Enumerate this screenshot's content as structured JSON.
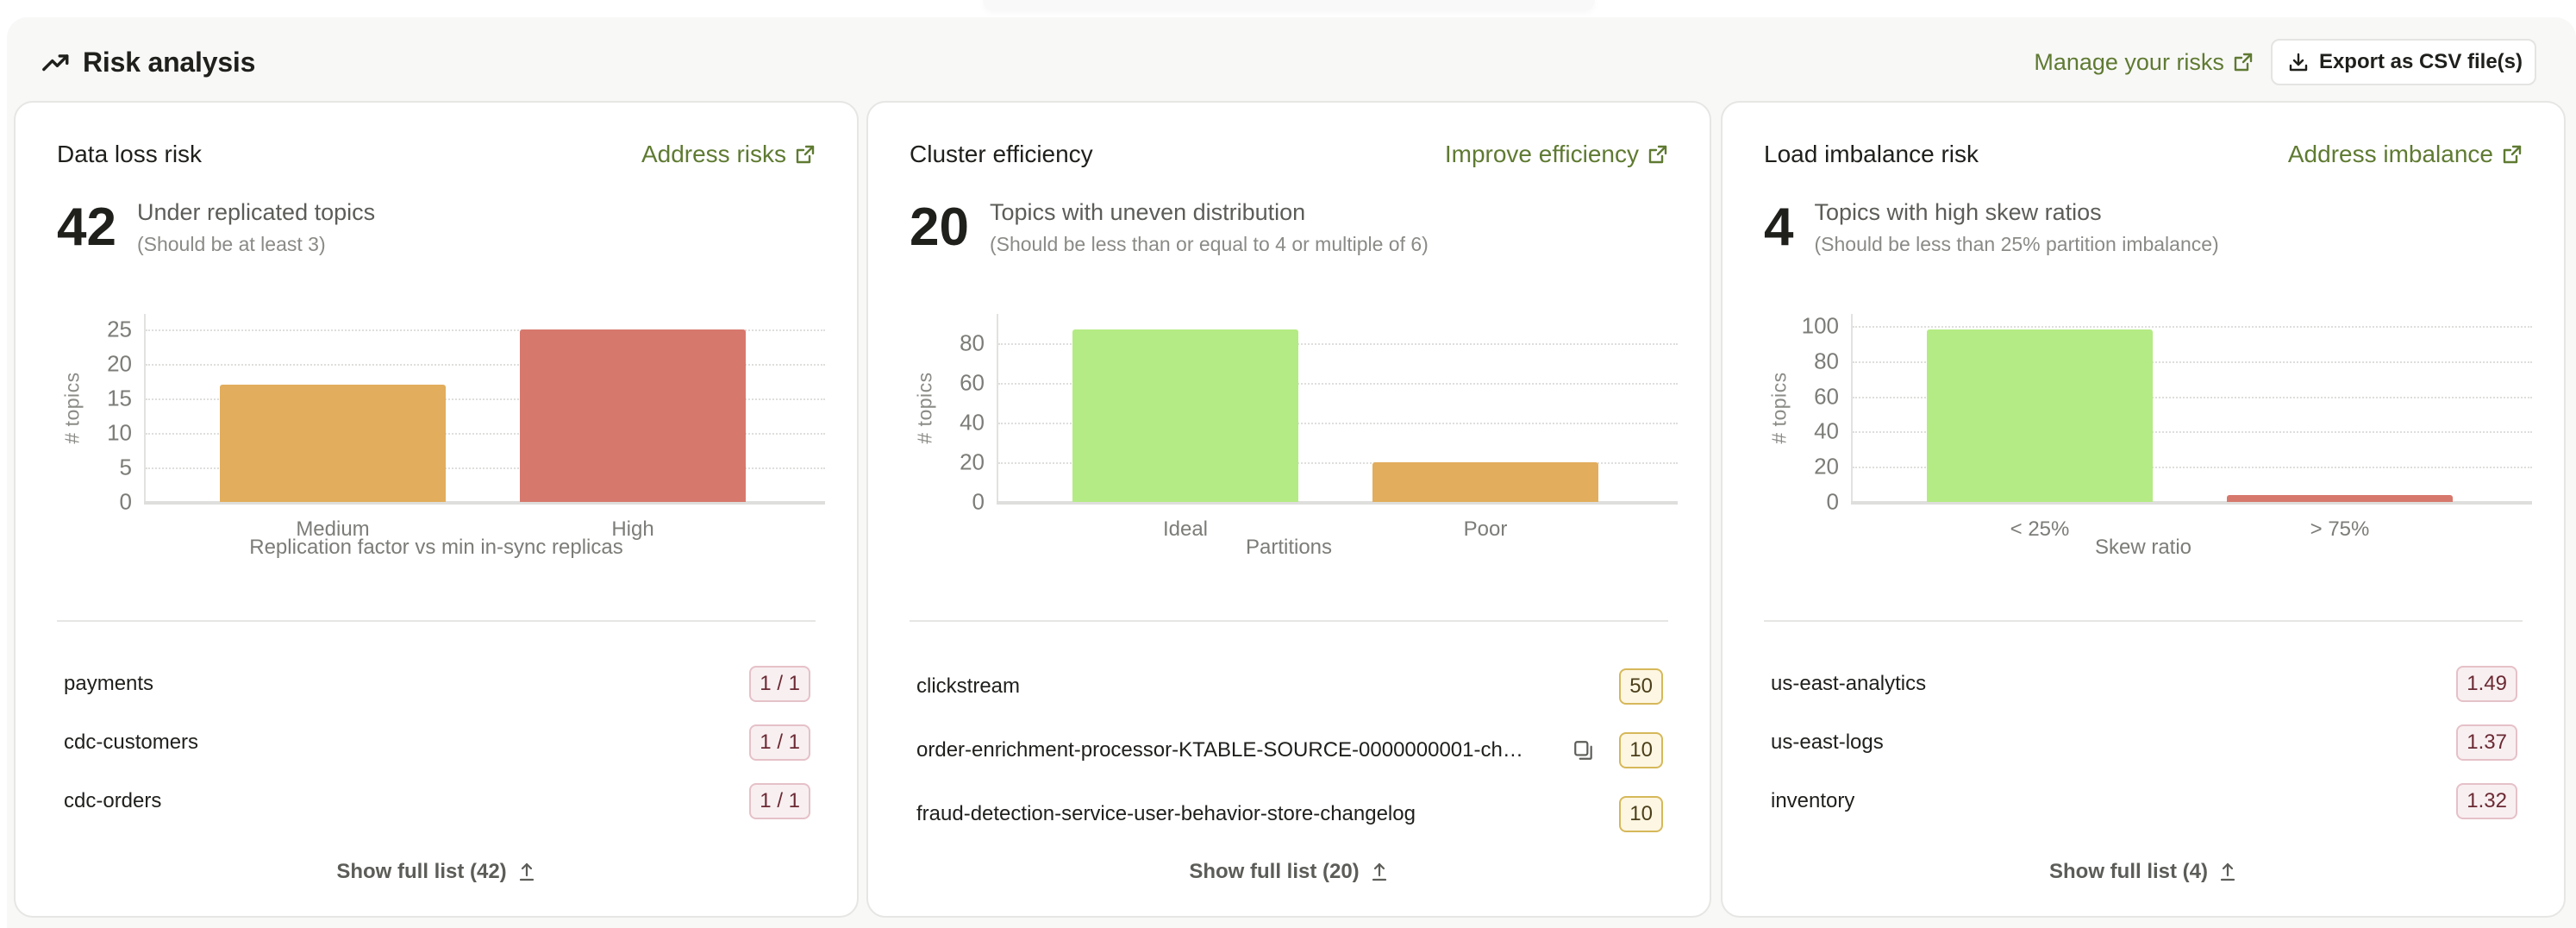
{
  "header": {
    "title": "Risk analysis",
    "icon": "trending-up-icon",
    "manage_link": "Manage your risks",
    "export_button": "Export as CSV file(s)"
  },
  "colors": {
    "accent_link": "#5f7a32",
    "bar_orange": "#e2ad5c",
    "bar_red": "#d7786d",
    "bar_green": "#b4eb84",
    "badge_red_bg": "#f8eff1",
    "badge_yellow_bg": "#fdf6e2",
    "panel_bg": "#f8f8f7"
  },
  "cards": [
    {
      "title": "Data loss risk",
      "link": "Address risks",
      "count": "42",
      "summary": "Under replicated topics",
      "subtext": "(Should be at least 3)",
      "topics": [
        {
          "name": "payments",
          "value": "1 / 1",
          "badge": "red"
        },
        {
          "name": "cdc-customers",
          "value": "1 / 1",
          "badge": "red"
        },
        {
          "name": "cdc-orders",
          "value": "1 / 1",
          "badge": "red"
        }
      ],
      "show_full": "Show full list (42)"
    },
    {
      "title": "Cluster efficiency",
      "link": "Improve efficiency",
      "count": "20",
      "summary": "Topics with uneven distribution",
      "subtext": "(Should be less than or equal to 4 or multiple of 6)",
      "topics": [
        {
          "name": "clickstream",
          "value": "50",
          "badge": "yellow",
          "copy": false
        },
        {
          "name": "order-enrichment-processor-KTABLE-SOURCE-0000000001-ch…",
          "value": "10",
          "badge": "yellow",
          "copy": true
        },
        {
          "name": "fraud-detection-service-user-behavior-store-changelog",
          "value": "10",
          "badge": "yellow",
          "copy": false
        }
      ],
      "show_full": "Show full list (20)"
    },
    {
      "title": "Load imbalance risk",
      "link": "Address imbalance",
      "count": "4",
      "summary": "Topics with high skew ratios",
      "subtext": "(Should be less than 25% partition imbalance)",
      "topics": [
        {
          "name": "us-east-analytics",
          "value": "1.49",
          "badge": "red"
        },
        {
          "name": "us-east-logs",
          "value": "1.37",
          "badge": "red"
        },
        {
          "name": "inventory",
          "value": "1.32",
          "badge": "red"
        }
      ],
      "show_full": "Show full list (4)"
    }
  ],
  "chart_data": [
    {
      "type": "bar",
      "title": "Data loss risk",
      "categories": [
        "Medium",
        "High"
      ],
      "values": [
        17,
        25
      ],
      "colors": [
        "#e2ad5c",
        "#d7786d"
      ],
      "xlabel": "Replication factor vs min in-sync replicas",
      "ylabel": "# topics",
      "yticks": [
        0,
        5,
        10,
        15,
        20,
        25
      ],
      "ylim": [
        0,
        27.3
      ],
      "grid": true
    },
    {
      "type": "bar",
      "title": "Cluster efficiency",
      "categories": [
        "Ideal",
        "Poor"
      ],
      "values": [
        87,
        20
      ],
      "colors": [
        "#b4eb84",
        "#e2ad5c"
      ],
      "xlabel": "Partitions",
      "ylabel": "# topics",
      "yticks": [
        0,
        20,
        40,
        60,
        80
      ],
      "ylim": [
        0,
        94.8
      ],
      "grid": true
    },
    {
      "type": "bar",
      "title": "Load imbalance risk",
      "categories": [
        "< 25%",
        "> 75%"
      ],
      "values": [
        98,
        4
      ],
      "colors": [
        "#b4eb84",
        "#d7786d"
      ],
      "xlabel": "Skew ratio",
      "ylabel": "# topics",
      "yticks": [
        0,
        20,
        40,
        60,
        80,
        100
      ],
      "ylim": [
        0,
        106.9
      ],
      "grid": true
    }
  ]
}
